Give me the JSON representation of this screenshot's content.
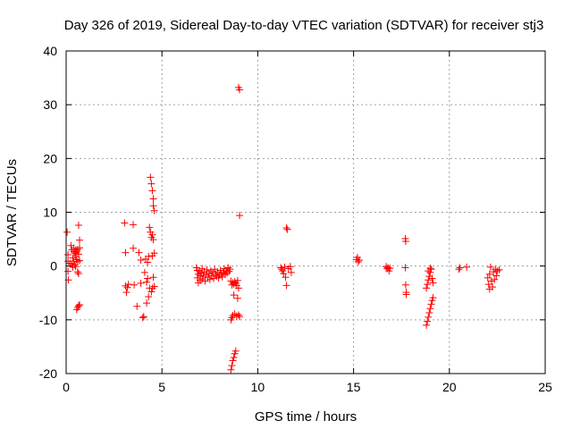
{
  "chart_data": {
    "type": "scatter",
    "title": "Day 326 of 2019, Sidereal Day-to-day VTEC variation (SDTVAR) for receiver stj3",
    "xlabel": "GPS time / hours",
    "ylabel": "SDTVAR / TECUs",
    "xlim": [
      0,
      25
    ],
    "ylim": [
      -20,
      40
    ],
    "xticks": [
      0,
      5,
      10,
      15,
      20,
      25
    ],
    "yticks": [
      -20,
      -10,
      0,
      10,
      20,
      30,
      40
    ],
    "grid": true,
    "marker": "+",
    "marker_color": "#ff0000",
    "series": [
      {
        "name": "SDTVAR",
        "points": [
          [
            0.05,
            6.3
          ],
          [
            0.1,
            2.1
          ],
          [
            0.1,
            0.9
          ],
          [
            0.1,
            -1.0
          ],
          [
            0.12,
            -2.6
          ],
          [
            0.2,
            0.5
          ],
          [
            0.25,
            3.8
          ],
          [
            0.3,
            3.0
          ],
          [
            0.3,
            0.3
          ],
          [
            0.35,
            1.5
          ],
          [
            0.35,
            -0.2
          ],
          [
            0.4,
            3.3
          ],
          [
            0.4,
            2.7
          ],
          [
            0.4,
            0.9
          ],
          [
            0.45,
            2.4
          ],
          [
            0.45,
            0.2
          ],
          [
            0.5,
            3.0
          ],
          [
            0.5,
            1.8
          ],
          [
            0.5,
            -0.1
          ],
          [
            0.55,
            2.6
          ],
          [
            0.55,
            1.2
          ],
          [
            0.6,
            3.1
          ],
          [
            0.6,
            0.8
          ],
          [
            0.6,
            -1.1
          ],
          [
            0.65,
            7.6
          ],
          [
            0.65,
            2.2
          ],
          [
            0.65,
            -1.4
          ],
          [
            0.7,
            4.8
          ],
          [
            0.7,
            3.4
          ],
          [
            0.7,
            1.0
          ],
          [
            0.55,
            -8.1
          ],
          [
            0.6,
            -7.7
          ],
          [
            0.65,
            -7.4
          ],
          [
            0.7,
            -7.2
          ],
          [
            3.05,
            8.0
          ],
          [
            3.1,
            2.5
          ],
          [
            3.1,
            -3.7
          ],
          [
            3.15,
            -4.9
          ],
          [
            3.2,
            -4.0
          ],
          [
            3.25,
            -3.4
          ],
          [
            3.5,
            7.7
          ],
          [
            3.5,
            3.3
          ],
          [
            3.55,
            -3.5
          ],
          [
            3.7,
            -7.5
          ],
          [
            3.8,
            2.5
          ],
          [
            3.9,
            1.1
          ],
          [
            3.9,
            -3.2
          ],
          [
            4.0,
            -9.6
          ],
          [
            4.05,
            -9.4
          ],
          [
            4.1,
            -1.2
          ],
          [
            4.15,
            1.3
          ],
          [
            4.2,
            -3.0
          ],
          [
            4.2,
            -6.9
          ],
          [
            4.25,
            0.7
          ],
          [
            4.25,
            -2.3
          ],
          [
            4.3,
            1.8
          ],
          [
            4.3,
            -5.7
          ],
          [
            4.35,
            -4.1
          ],
          [
            4.35,
            7.2
          ],
          [
            4.4,
            16.5
          ],
          [
            4.4,
            6.3
          ],
          [
            4.45,
            15.3
          ],
          [
            4.45,
            5.3
          ],
          [
            4.45,
            -4.8
          ],
          [
            4.5,
            14.0
          ],
          [
            4.5,
            5.8
          ],
          [
            4.5,
            -4.1
          ],
          [
            4.5,
            1.9
          ],
          [
            4.55,
            12.5
          ],
          [
            4.55,
            11.2
          ],
          [
            4.55,
            4.9
          ],
          [
            4.55,
            -2.1
          ],
          [
            4.6,
            10.3
          ],
          [
            4.6,
            -3.8
          ],
          [
            4.6,
            2.4
          ],
          [
            6.8,
            -0.3
          ],
          [
            6.85,
            -0.8
          ],
          [
            6.85,
            -2.2
          ],
          [
            6.9,
            -1.5
          ],
          [
            6.9,
            -3.1
          ],
          [
            6.95,
            -0.9
          ],
          [
            7.0,
            -1.8
          ],
          [
            7.0,
            -2.7
          ],
          [
            7.05,
            -1.3
          ],
          [
            7.1,
            -0.5
          ],
          [
            7.1,
            -2.4
          ],
          [
            7.15,
            -1.9
          ],
          [
            7.2,
            -1.1
          ],
          [
            7.25,
            -2.8
          ],
          [
            7.3,
            -1.6
          ],
          [
            7.35,
            -0.7
          ],
          [
            7.4,
            -2.1
          ],
          [
            7.45,
            -1.4
          ],
          [
            7.5,
            -2.5
          ],
          [
            7.55,
            -0.9
          ],
          [
            7.6,
            -1.8
          ],
          [
            7.65,
            -1.2
          ],
          [
            7.7,
            -2.3
          ],
          [
            7.75,
            -0.6
          ],
          [
            7.8,
            -1.5
          ],
          [
            7.85,
            -1.9
          ],
          [
            7.9,
            -1.1
          ],
          [
            7.95,
            -2.2
          ],
          [
            8.0,
            -1.7
          ],
          [
            8.05,
            -0.8
          ],
          [
            8.1,
            -1.4
          ],
          [
            8.15,
            -2.0
          ],
          [
            8.2,
            -1.2
          ],
          [
            8.25,
            -0.5
          ],
          [
            8.3,
            -1.6
          ],
          [
            8.35,
            -0.9
          ],
          [
            8.4,
            -1.3
          ],
          [
            8.45,
            -0.3
          ],
          [
            8.5,
            -1.0
          ],
          [
            8.55,
            -0.6
          ],
          [
            8.6,
            -2.8
          ],
          [
            8.65,
            -3.5
          ],
          [
            8.7,
            -3.1
          ],
          [
            8.75,
            -3.4
          ],
          [
            8.8,
            -2.9
          ],
          [
            8.85,
            -3.2
          ],
          [
            8.9,
            -3.6
          ],
          [
            8.95,
            -2.7
          ],
          [
            9.0,
            -4.1
          ],
          [
            8.6,
            -19.3
          ],
          [
            8.65,
            -18.5
          ],
          [
            8.7,
            -17.6
          ],
          [
            8.75,
            -17.0
          ],
          [
            8.8,
            -16.3
          ],
          [
            8.85,
            -15.8
          ],
          [
            8.6,
            -10.0
          ],
          [
            8.65,
            -9.6
          ],
          [
            8.7,
            -9.2
          ],
          [
            8.8,
            -8.9
          ],
          [
            8.9,
            -9.3
          ],
          [
            9.0,
            -9.1
          ],
          [
            9.05,
            -9.4
          ],
          [
            8.75,
            -5.4
          ],
          [
            8.95,
            -6.0
          ],
          [
            9.0,
            33.2
          ],
          [
            9.05,
            32.8
          ],
          [
            9.05,
            9.4
          ],
          [
            11.2,
            -0.3
          ],
          [
            11.25,
            -0.6
          ],
          [
            11.3,
            -0.9
          ],
          [
            11.35,
            -1.4
          ],
          [
            11.4,
            -0.2
          ],
          [
            11.45,
            -2.1
          ],
          [
            11.5,
            -3.6
          ],
          [
            11.5,
            7.1
          ],
          [
            11.55,
            6.8
          ],
          [
            11.6,
            -0.5
          ],
          [
            11.7,
            -0.1
          ],
          [
            11.75,
            -1.2
          ],
          [
            15.15,
            1.2
          ],
          [
            15.2,
            1.6
          ],
          [
            15.25,
            0.8
          ],
          [
            15.3,
            1.1
          ],
          [
            16.7,
            -0.1
          ],
          [
            16.75,
            -0.5
          ],
          [
            16.8,
            -0.3
          ],
          [
            16.85,
            -0.9
          ],
          [
            16.9,
            -0.4
          ],
          [
            17.7,
            5.1
          ],
          [
            17.72,
            4.6
          ],
          [
            17.7,
            -0.3
          ],
          [
            17.72,
            -3.5
          ],
          [
            17.75,
            -4.9
          ],
          [
            17.75,
            -5.3
          ],
          [
            18.8,
            -11.0
          ],
          [
            18.85,
            -10.3
          ],
          [
            18.9,
            -9.5
          ],
          [
            18.95,
            -8.7
          ],
          [
            19.0,
            -7.9
          ],
          [
            19.05,
            -7.1
          ],
          [
            19.1,
            -6.4
          ],
          [
            19.15,
            -5.9
          ],
          [
            18.8,
            -4.1
          ],
          [
            18.85,
            -3.4
          ],
          [
            18.9,
            -2.6
          ],
          [
            18.95,
            -1.9
          ],
          [
            19.0,
            -1.2
          ],
          [
            19.05,
            -0.6
          ],
          [
            19.1,
            -2.3
          ],
          [
            19.15,
            -3.1
          ],
          [
            18.9,
            -0.9
          ],
          [
            19.0,
            -0.4
          ],
          [
            20.5,
            -0.6
          ],
          [
            20.55,
            -0.3
          ],
          [
            20.9,
            -0.2
          ],
          [
            22.0,
            -2.2
          ],
          [
            22.05,
            -3.4
          ],
          [
            22.1,
            -4.3
          ],
          [
            22.1,
            -1.5
          ],
          [
            22.15,
            -0.2
          ],
          [
            22.2,
            -2.8
          ],
          [
            22.25,
            -3.9
          ],
          [
            22.3,
            -1.1
          ],
          [
            22.35,
            -2.5
          ],
          [
            22.4,
            -0.6
          ],
          [
            22.45,
            -1.8
          ],
          [
            22.5,
            -0.9
          ],
          [
            22.6,
            -0.7
          ]
        ]
      }
    ]
  }
}
